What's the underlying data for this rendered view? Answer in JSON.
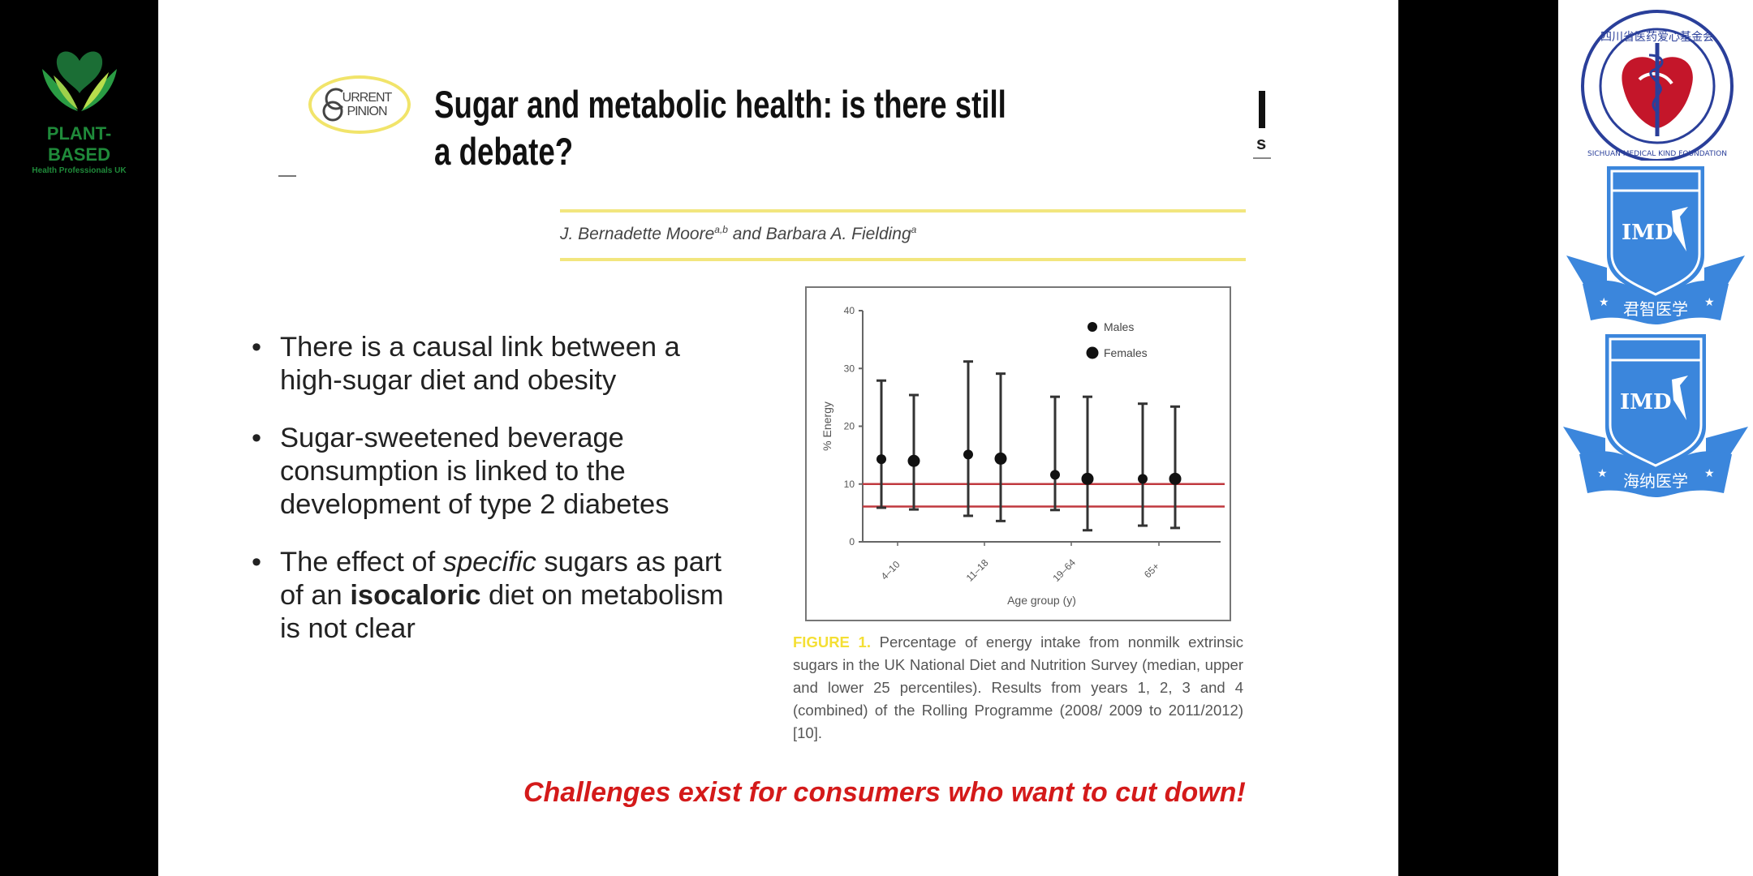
{
  "left_logo": {
    "name": "PLANT-BASED",
    "subtitle": "Health Professionals UK",
    "color": "#1f8a3a"
  },
  "slide": {
    "journal_logo": {
      "line1": "URRENT",
      "line2": "PINION",
      "initials": "C O"
    },
    "title_line1": "Sugar and metabolic health: is there still",
    "title_line2": "a debate?",
    "right_fragment": "s",
    "authors": {
      "author1": "J. Bernadette Moore",
      "author1_sup": "a,b",
      "and": " and ",
      "author2": "Barbara A. Fielding",
      "author2_sup": "a"
    },
    "bullets": [
      {
        "text": "There is a causal link between a high-sugar diet and obesity"
      },
      {
        "text": "Sugar-sweetened beverage consumption is linked to the development of type 2 diabetes"
      },
      {
        "pre": "The effect of ",
        "italic": "specific",
        "mid": " sugars as part of an ",
        "bold": "isocaloric",
        "post": " diet on metabolism is not clear"
      }
    ],
    "bullet_symbol": "•",
    "figure": {
      "label": "FIGURE 1.",
      "caption": " Percentage of energy intake from nonmilk extrinsic sugars in the UK National Diet and Nutrition Survey (median, upper and lower 25 percentiles). Results from years 1, 2, 3 and 4 (combined) of the Rolling Programme (2008/ 2009 to 2011/2012) [10]."
    },
    "callout": "Challenges exist for consumers who want to cut down!",
    "callout_color": "#d41a1a"
  },
  "chart_data": {
    "type": "scatter",
    "title": "",
    "xlabel": "Age group (y)",
    "ylabel": "% Energy",
    "ylim": [
      0,
      40
    ],
    "yticks": [
      0,
      10,
      20,
      30,
      40
    ],
    "categories": [
      "4–10",
      "11–18",
      "19–64",
      "65+"
    ],
    "legend": [
      "Males",
      "Females"
    ],
    "legend_position": "top-right",
    "grid": false,
    "series": [
      {
        "name": "Males",
        "median": [
          14.3,
          15.1,
          11.6,
          10.9
        ],
        "upper": [
          27.9,
          31.2,
          25.1,
          23.9
        ],
        "lower": [
          5.9,
          4.5,
          5.5,
          2.8
        ]
      },
      {
        "name": "Females",
        "median": [
          14.0,
          14.4,
          10.9,
          10.9
        ],
        "upper": [
          25.4,
          29.1,
          25.1,
          23.4
        ],
        "lower": [
          5.6,
          3.6,
          2.0,
          2.4
        ]
      }
    ],
    "reference_lines": [
      {
        "y": 10,
        "color": "#c0393f"
      },
      {
        "y": 6.1,
        "color": "#c0393f"
      }
    ]
  },
  "right_logos": [
    {
      "name": "Sichuan Medical Kind Foundation",
      "chinese": "四川省医药爱心基金会",
      "english": "SICHUAN MEDICAL KIND FOUNDATION"
    },
    {
      "name": "IMD",
      "chinese": "君智医学",
      "color": "#3b86dc"
    },
    {
      "name": "IMD",
      "chinese": "海纳医学",
      "color": "#3b86dc"
    }
  ]
}
